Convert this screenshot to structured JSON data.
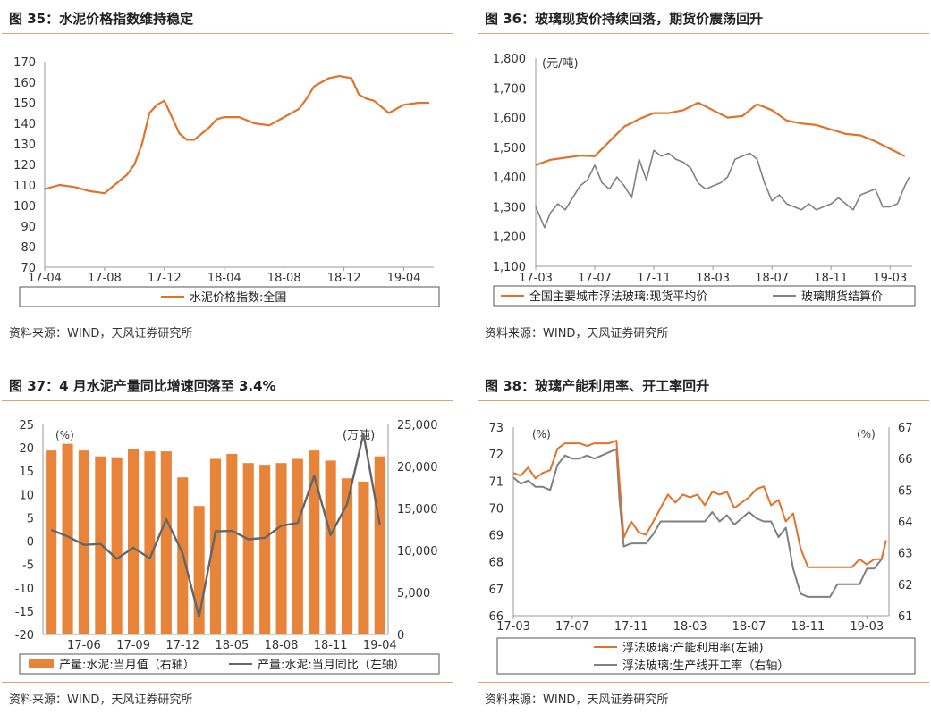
{
  "colors": {
    "orange": "#E0722A",
    "gray": "#808080",
    "bar": "#E8843A",
    "rule": "#E3A06A"
  },
  "panels": [
    {
      "title": "图 35：水泥价格指数维持稳定",
      "source": "资料来源：WIND，天风证券研究所"
    },
    {
      "title": "图 36：玻璃现货价持续回落，期货价震荡回升",
      "source": "资料来源：WIND，天风证券研究所"
    },
    {
      "title": "图 37：4 月水泥产量同比增速回落至 3.4%",
      "source": "资料来源：WIND，天风证券研究所"
    },
    {
      "title": "图 38：玻璃产能利用率、开工率回升",
      "source": "资料来源：WIND，天风证券研究所"
    }
  ],
  "chart_data": [
    {
      "type": "line",
      "y_ticks": [
        "70",
        "80",
        "90",
        "100",
        "110",
        "120",
        "130",
        "140",
        "150",
        "160",
        "170"
      ],
      "ylim": [
        70,
        170
      ],
      "x_ticks": [
        "17-04",
        "17-08",
        "17-12",
        "18-04",
        "18-08",
        "18-12",
        "19-04"
      ],
      "xlim": [
        0,
        26
      ],
      "x_tick_pos": [
        0,
        4,
        8,
        12,
        16,
        20,
        24
      ],
      "series": [
        {
          "name": "水泥价格指数:全国",
          "color": "orange",
          "x": [
            0,
            1,
            2,
            3,
            4,
            5,
            5.5,
            6,
            6.5,
            7,
            7.5,
            8,
            8.5,
            9,
            9.5,
            10,
            11,
            11.5,
            12,
            13,
            14,
            15,
            16,
            17,
            17.5,
            18,
            19,
            19.7,
            20.5,
            21,
            21.5,
            22,
            23,
            24,
            25,
            25.7
          ],
          "y": [
            108,
            110,
            109,
            107,
            106,
            112,
            115,
            120,
            130,
            145,
            149,
            151,
            143,
            135,
            132,
            132,
            138,
            142,
            143,
            143,
            140,
            139,
            143,
            147,
            152,
            158,
            162,
            163,
            162,
            154,
            152,
            151,
            145,
            149,
            150,
            150
          ]
        }
      ]
    },
    {
      "type": "line",
      "y_label": "(元/吨)",
      "y_ticks": [
        "1,100",
        "1,200",
        "1,300",
        "1,400",
        "1,500",
        "1,600",
        "1,700",
        "1,800"
      ],
      "ylim": [
        1100,
        1800
      ],
      "x_ticks": [
        "17-03",
        "17-07",
        "17-11",
        "18-03",
        "18-07",
        "18-11",
        "19-03"
      ],
      "xlim": [
        0,
        25.5
      ],
      "x_tick_pos": [
        0,
        4,
        8,
        12,
        16,
        20,
        24
      ],
      "series": [
        {
          "name": "全国主要城市浮法玻璃:现货平均价",
          "color": "orange",
          "x": [
            0,
            1,
            2,
            3,
            4,
            5,
            6,
            7,
            8,
            9,
            10,
            11,
            12,
            13,
            14,
            15,
            16,
            17,
            18,
            19,
            20,
            21,
            22,
            23,
            24,
            25
          ],
          "y": [
            1440,
            1458,
            1465,
            1472,
            1470,
            1520,
            1570,
            1595,
            1615,
            1615,
            1625,
            1650,
            1625,
            1600,
            1605,
            1645,
            1625,
            1590,
            1580,
            1575,
            1560,
            1545,
            1540,
            1520,
            1495,
            1470
          ]
        },
        {
          "name": "玻璃期货结算价",
          "color": "gray",
          "x": [
            0,
            0.6,
            1,
            1.5,
            2,
            2.5,
            3,
            3.5,
            4,
            4.5,
            5,
            5.5,
            6,
            6.5,
            7,
            7.5,
            8,
            8.5,
            9,
            9.5,
            10,
            10.5,
            11,
            11.5,
            12,
            12.5,
            13,
            13.5,
            14,
            14.5,
            15,
            15.5,
            16,
            16.5,
            17,
            17.5,
            18,
            18.5,
            19,
            19.5,
            20,
            20.5,
            21,
            21.5,
            22,
            22.5,
            23,
            23.5,
            24,
            24.5,
            25,
            25.3
          ],
          "y": [
            1300,
            1230,
            1280,
            1310,
            1290,
            1330,
            1370,
            1390,
            1440,
            1380,
            1360,
            1400,
            1370,
            1330,
            1460,
            1390,
            1490,
            1470,
            1480,
            1460,
            1450,
            1430,
            1380,
            1360,
            1370,
            1380,
            1400,
            1460,
            1470,
            1480,
            1460,
            1380,
            1320,
            1340,
            1310,
            1300,
            1290,
            1310,
            1290,
            1300,
            1310,
            1330,
            1310,
            1290,
            1340,
            1350,
            1360,
            1300,
            1300,
            1310,
            1370,
            1400
          ]
        }
      ]
    },
    {
      "type": "bar",
      "y_label_left": "(%)",
      "y_label_right": "(万吨)",
      "y_ticks_left": [
        "-20",
        "-15",
        "-10",
        "-5",
        "0",
        "5",
        "10",
        "15",
        "20",
        "25"
      ],
      "ylim_left": [
        -20,
        25
      ],
      "y_ticks_right": [
        "0",
        "5,000",
        "10,000",
        "15,000",
        "20,000",
        "25,000"
      ],
      "ylim_right": [
        0,
        25000
      ],
      "x_ticks": [
        "17-06",
        "17-09",
        "17-12",
        "18-05",
        "18-08",
        "18-11",
        "19-04"
      ],
      "x_tick_index": [
        2,
        5,
        8,
        11,
        14,
        17,
        20
      ],
      "series": [
        {
          "name": "产量:水泥:当月值（右轴）",
          "axis": "right",
          "color": "bar",
          "values": [
            21900,
            22700,
            21900,
            21200,
            21100,
            22100,
            21800,
            21800,
            18700,
            15300,
            20900,
            21500,
            20400,
            20200,
            20400,
            20900,
            21900,
            20700,
            18600,
            18200,
            21200
          ]
        },
        {
          "name": "产量:水泥:当月同比（左轴）",
          "axis": "left",
          "color": "gray",
          "values": [
            2.4,
            1.0,
            -0.8,
            -0.6,
            -3.8,
            -1.4,
            -3.7,
            4.7,
            -2.6,
            -16.2,
            2.1,
            2.2,
            0.4,
            0.7,
            3.3,
            3.9,
            14.0,
            1.3,
            7.9,
            23.0,
            3.4
          ]
        }
      ]
    },
    {
      "type": "line",
      "y_label_left": "(%)",
      "y_label_right": "(%)",
      "y_ticks_left": [
        "66",
        "67",
        "68",
        "69",
        "70",
        "71",
        "72",
        "73"
      ],
      "ylim_left": [
        66,
        73
      ],
      "y_ticks_right": [
        "61",
        "62",
        "63",
        "64",
        "65",
        "66",
        "67"
      ],
      "ylim_right": [
        61,
        67
      ],
      "x_ticks": [
        "17-03",
        "17-07",
        "17-11",
        "18-03",
        "18-07",
        "18-11",
        "19-03"
      ],
      "xlim": [
        0,
        25.5
      ],
      "x_tick_pos": [
        0,
        4,
        8,
        12,
        16,
        20,
        24
      ],
      "series": [
        {
          "name": "浮法玻璃:产能利用率(左轴)",
          "axis": "left",
          "color": "orange",
          "x": [
            0,
            0.5,
            1,
            1.5,
            2,
            2.5,
            3,
            3.5,
            4,
            4.5,
            5,
            5.5,
            6,
            6.5,
            7,
            7.2,
            7.5,
            8,
            8.5,
            9,
            9.5,
            10,
            10.5,
            11,
            11.5,
            12,
            12.5,
            13,
            13.5,
            14,
            14.5,
            15,
            15.5,
            16,
            16.5,
            17,
            17.5,
            18,
            18.5,
            19,
            19.5,
            20,
            20.5,
            21,
            21.5,
            22,
            22.5,
            23,
            23.5,
            24,
            24.5,
            25,
            25.3
          ],
          "y": [
            71.3,
            71.2,
            71.5,
            71.1,
            71.3,
            71.4,
            72.2,
            72.4,
            72.4,
            72.4,
            72.3,
            72.4,
            72.4,
            72.4,
            72.5,
            71.0,
            68.9,
            69.5,
            69.1,
            69.0,
            69.5,
            70.0,
            70.5,
            70.2,
            70.5,
            70.4,
            70.5,
            70.1,
            70.6,
            70.5,
            70.6,
            70.0,
            70.2,
            70.4,
            70.7,
            70.8,
            70.1,
            70.3,
            69.5,
            69.8,
            68.5,
            67.8,
            67.8,
            67.8,
            67.8,
            67.8,
            67.8,
            67.8,
            68.1,
            67.9,
            68.1,
            68.1,
            68.8
          ]
        },
        {
          "name": "浮法玻璃:生产线开工率（右轴）",
          "axis": "right",
          "color": "gray",
          "x": [
            0,
            0.5,
            1,
            1.5,
            2,
            2.5,
            3,
            3.5,
            4,
            4.5,
            5,
            5.5,
            6,
            6.5,
            7,
            7.2,
            7.5,
            8,
            8.5,
            9,
            9.5,
            10,
            10.5,
            11,
            11.5,
            12,
            12.5,
            13,
            13.5,
            14,
            14.5,
            15,
            15.5,
            16,
            16.5,
            17,
            17.5,
            18,
            18.5,
            19,
            19.5,
            20,
            20.5,
            21,
            21.5,
            22,
            22.5,
            23,
            23.5,
            24,
            24.5,
            25,
            25.3
          ],
          "y": [
            65.4,
            65.2,
            65.3,
            65.1,
            65.1,
            65.0,
            65.8,
            66.1,
            66.0,
            66.0,
            66.1,
            66.0,
            66.1,
            66.2,
            66.3,
            64.7,
            63.2,
            63.3,
            63.3,
            63.3,
            63.6,
            64.0,
            64.0,
            64.0,
            64.0,
            64.0,
            64.0,
            64.0,
            64.3,
            64.0,
            64.2,
            63.9,
            64.1,
            64.3,
            64.1,
            64.0,
            64.0,
            63.5,
            63.8,
            62.5,
            61.7,
            61.6,
            61.6,
            61.6,
            61.6,
            62.0,
            62.0,
            62.0,
            62.0,
            62.5,
            62.5,
            62.8,
            63.4
          ]
        }
      ]
    }
  ]
}
